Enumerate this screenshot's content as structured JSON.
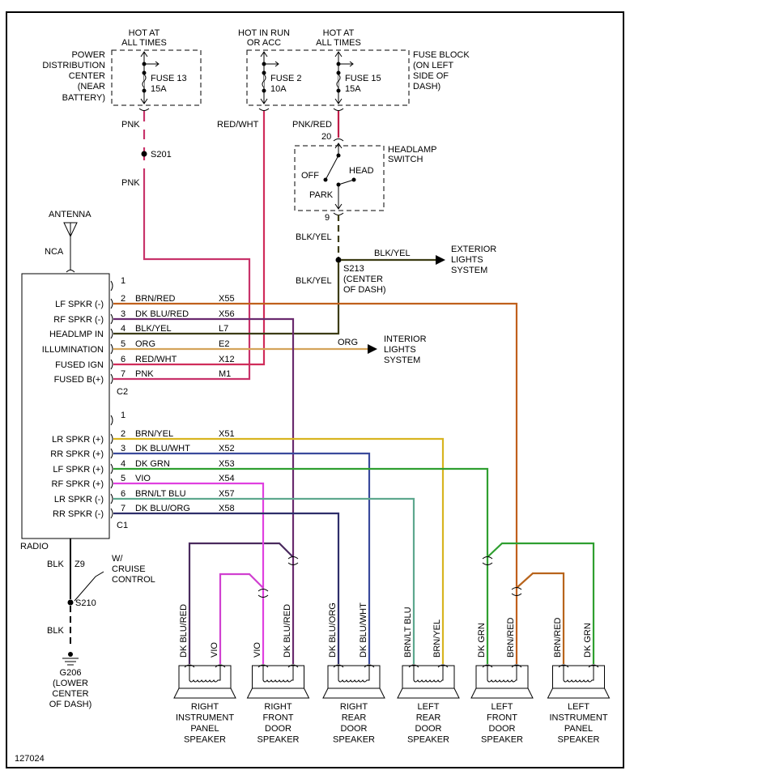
{
  "sources": {
    "pdc_hot": [
      "HOT AT",
      "ALL TIMES"
    ],
    "pdc_name": [
      "POWER",
      "DISTRIBUTION",
      "CENTER",
      "(NEAR",
      "BATTERY)"
    ],
    "fuse13": [
      "FUSE 13",
      "15A"
    ],
    "run_hot": [
      "HOT IN RUN",
      "OR ACC"
    ],
    "fuse2": [
      "FUSE 2",
      "10A"
    ],
    "fb_hot": [
      "HOT AT",
      "ALL TIMES"
    ],
    "fuse15": [
      "FUSE 15",
      "15A"
    ],
    "fuse_block": [
      "FUSE BLOCK",
      "(ON LEFT",
      "SIDE OF",
      "DASH)"
    ]
  },
  "wires_top": {
    "pnk1": "PNK",
    "s201": "S201",
    "pnk2": "PNK",
    "red_wht": "RED/WHT",
    "pnk_red": "PNK/RED",
    "pin20": "20",
    "pin9": "9",
    "blk_yel1": "BLK/YEL",
    "blk_yel2": "BLK/YEL",
    "blk_yel3": "BLK/YEL",
    "s213": [
      "S213",
      "(CENTER",
      "OF DASH)"
    ],
    "exterior": [
      "EXTERIOR",
      "LIGHTS",
      "SYSTEM"
    ],
    "org": "ORG",
    "interior": [
      "INTERIOR",
      "LIGHTS",
      "SYSTEM"
    ]
  },
  "headlamp_switch": {
    "title": [
      "HEADLAMP",
      "SWITCH"
    ],
    "off": "OFF",
    "head": "HEAD",
    "park": "PARK"
  },
  "antenna": {
    "label": "ANTENNA",
    "nca": "NCA"
  },
  "radio": {
    "label": "RADIO",
    "c2": {
      "name": "C2",
      "pins": [
        {
          "num": "1",
          "func": "",
          "color": "",
          "circuit": ""
        },
        {
          "num": "2",
          "func": "LF SPKR (-)",
          "color": "BRN/RED",
          "circuit": "X55"
        },
        {
          "num": "3",
          "func": "RF SPKR (-)",
          "color": "DK BLU/RED",
          "circuit": "X56"
        },
        {
          "num": "4",
          "func": "HEADLMP IN",
          "color": "BLK/YEL",
          "circuit": "L7"
        },
        {
          "num": "5",
          "func": "ILLUMINATION",
          "color": "ORG",
          "circuit": "E2"
        },
        {
          "num": "6",
          "func": "FUSED IGN",
          "color": "RED/WHT",
          "circuit": "X12"
        },
        {
          "num": "7",
          "func": "FUSED B(+)",
          "color": "PNK",
          "circuit": "M1"
        }
      ]
    },
    "c1": {
      "name": "C1",
      "pins": [
        {
          "num": "1",
          "func": "",
          "color": "",
          "circuit": ""
        },
        {
          "num": "2",
          "func": "LR SPKR (+)",
          "color": "BRN/YEL",
          "circuit": "X51"
        },
        {
          "num": "3",
          "func": "RR SPKR (+)",
          "color": "DK BLU/WHT",
          "circuit": "X52"
        },
        {
          "num": "4",
          "func": "LF SPKR (+)",
          "color": "DK GRN",
          "circuit": "X53"
        },
        {
          "num": "5",
          "func": "RF SPKR (+)",
          "color": "VIO",
          "circuit": "X54"
        },
        {
          "num": "6",
          "func": "LR SPKR (-)",
          "color": "BRN/LT BLU",
          "circuit": "X57"
        },
        {
          "num": "7",
          "func": "RR SPKR (-)",
          "color": "DK BLU/ORG",
          "circuit": "X58"
        }
      ]
    }
  },
  "ground": {
    "blk1": "BLK",
    "z9": "Z9",
    "s210": "S210",
    "blk2": "BLK",
    "cruise": [
      "W/",
      "CRUISE",
      "CONTROL"
    ],
    "g206": [
      "G206",
      "(LOWER",
      "CENTER",
      "OF DASH)"
    ]
  },
  "speakers": [
    {
      "name": [
        "RIGHT",
        "INSTRUMENT",
        "PANEL",
        "SPEAKER"
      ],
      "wires": [
        "DK BLU/RED",
        "VIO"
      ]
    },
    {
      "name": [
        "RIGHT",
        "FRONT",
        "DOOR",
        "SPEAKER"
      ],
      "wires": [
        "VIO",
        "DK BLU/RED"
      ]
    },
    {
      "name": [
        "RIGHT",
        "REAR",
        "DOOR",
        "SPEAKER"
      ],
      "wires": [
        "DK BLU/ORG",
        "DK BLU/WHT"
      ]
    },
    {
      "name": [
        "LEFT",
        "REAR",
        "DOOR",
        "SPEAKER"
      ],
      "wires": [
        "BRN/LT BLU",
        "BRN/YEL"
      ]
    },
    {
      "name": [
        "LEFT",
        "FRONT",
        "DOOR",
        "SPEAKER"
      ],
      "wires": [
        "DK GRN",
        "BRN/RED"
      ]
    },
    {
      "name": [
        "LEFT",
        "INSTRUMENT",
        "PANEL",
        "SPEAKER"
      ],
      "wires": [
        "BRN/RED",
        "DK GRN"
      ]
    }
  ],
  "figure_id": "127024",
  "wire_colors": {
    "PNK": "#c8336a",
    "RED/WHT": "#d02c5a",
    "PNK/RED": "#c01c48",
    "BLK/YEL": "#3c3c14",
    "BRN/RED": "#c0601c",
    "DK BLU/RED": "#6a2a6e",
    "ORG": "#d4a45a",
    "BRN/YEL": "#d8b420",
    "DK BLU/WHT": "#3a4a9c",
    "DK GRN": "#2f9f30",
    "VIO": "#e040e0",
    "BRN/LT BLU": "#5ea88e",
    "DK BLU/ORG": "#2e2e6a"
  }
}
